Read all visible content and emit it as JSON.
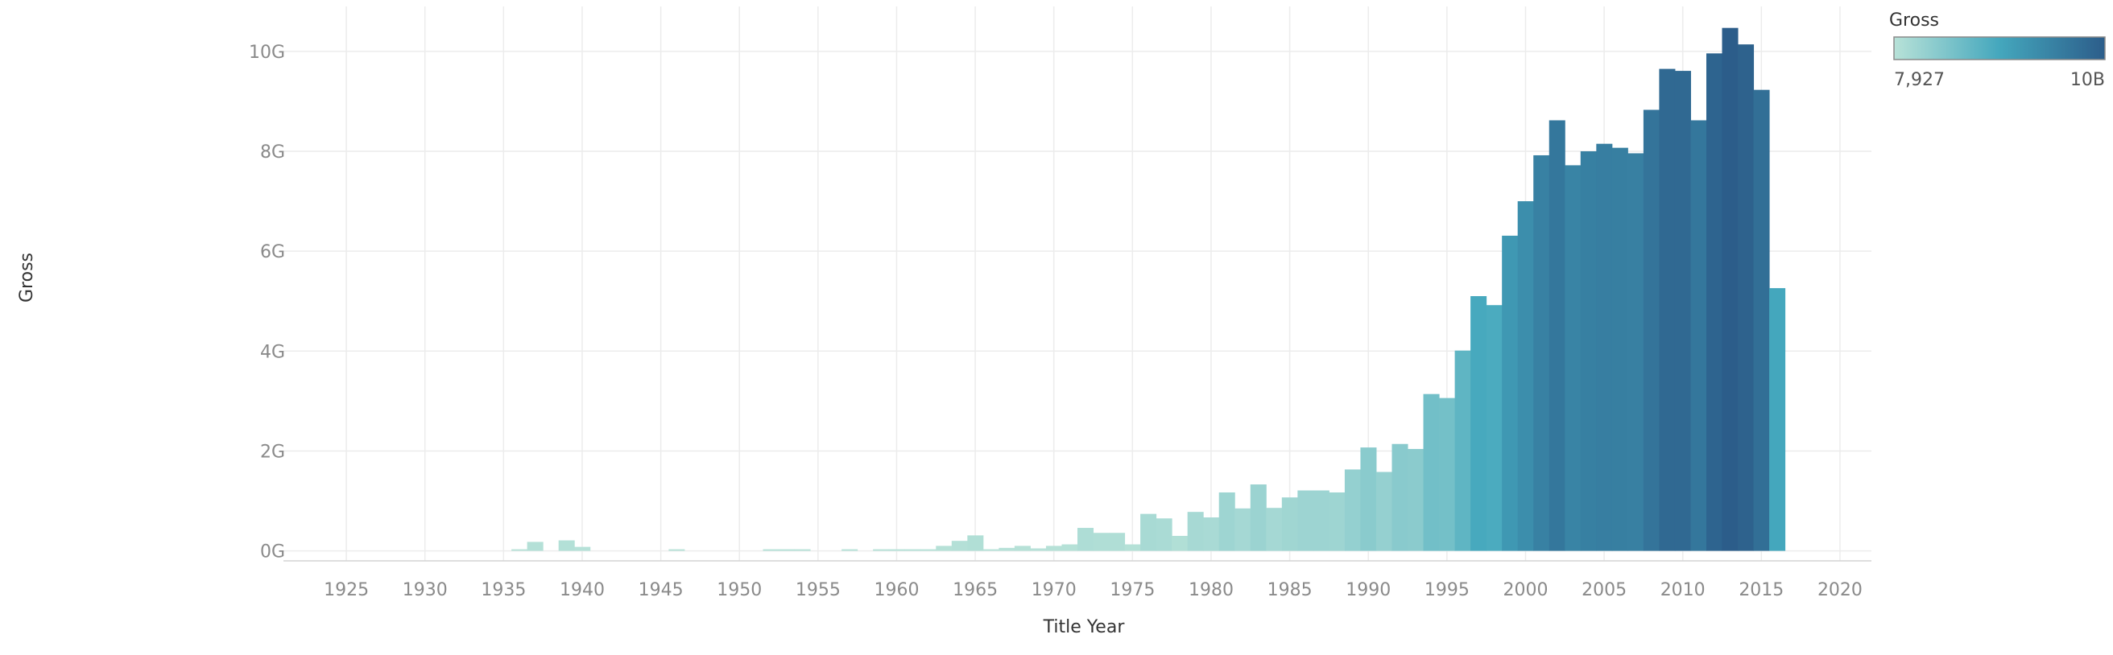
{
  "chart_data": {
    "type": "bar",
    "xlabel": "Title Year",
    "ylabel": "Gross",
    "xlim": [
      1921,
      2022
    ],
    "ylim": [
      -0.2,
      10.9
    ],
    "x_ticks": [
      "1925",
      "1930",
      "1935",
      "1940",
      "1945",
      "1950",
      "1955",
      "1960",
      "1965",
      "1970",
      "1975",
      "1980",
      "1985",
      "1990",
      "1995",
      "2000",
      "2005",
      "2010",
      "2015",
      "2020"
    ],
    "y_ticks": [
      "0G",
      "2G",
      "4G",
      "6G",
      "8G",
      "10G"
    ],
    "grid": true,
    "legend": {
      "title": "Gross",
      "min_label": "7,927",
      "max_label": "10B",
      "placement": "top-right",
      "colors": [
        "#b8e2d8",
        "#44a7bd",
        "#2c5d8a"
      ]
    },
    "unit": "G",
    "x": [
      1936,
      1937,
      1939,
      1940,
      1946,
      1952,
      1953,
      1954,
      1957,
      1959,
      1960,
      1961,
      1962,
      1963,
      1964,
      1965,
      1966,
      1967,
      1968,
      1969,
      1970,
      1971,
      1972,
      1973,
      1974,
      1975,
      1976,
      1977,
      1978,
      1979,
      1980,
      1981,
      1982,
      1983,
      1984,
      1985,
      1986,
      1987,
      1988,
      1989,
      1990,
      1991,
      1992,
      1993,
      1994,
      1995,
      1996,
      1997,
      1998,
      1999,
      2000,
      2001,
      2002,
      2003,
      2004,
      2005,
      2006,
      2007,
      2008,
      2009,
      2010,
      2011,
      2012,
      2013,
      2014,
      2015,
      2016
    ],
    "values": [
      0.01,
      0.18,
      0.21,
      0.08,
      0.02,
      0.03,
      0.03,
      0.02,
      0.03,
      0.02,
      0.03,
      0.03,
      0.03,
      0.1,
      0.2,
      0.31,
      0.03,
      0.06,
      0.1,
      0.05,
      0.1,
      0.13,
      0.46,
      0.36,
      0.36,
      0.13,
      0.74,
      0.65,
      0.3,
      0.78,
      0.67,
      1.17,
      0.85,
      1.33,
      0.86,
      1.07,
      1.21,
      1.21,
      1.17,
      1.63,
      2.07,
      1.58,
      2.14,
      2.04,
      3.14,
      3.06,
      4.01,
      5.1,
      4.92,
      6.31,
      7.0,
      7.92,
      8.62,
      7.72,
      8.0,
      8.15,
      8.07,
      7.96,
      8.83,
      9.65,
      9.61,
      8.62,
      9.96,
      10.47,
      10.14,
      9.23,
      5.26
    ]
  }
}
